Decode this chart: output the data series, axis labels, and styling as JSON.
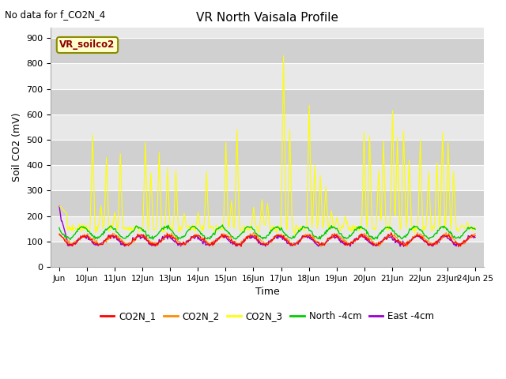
{
  "title": "VR North Vaisala Profile",
  "subtitle": "No data for f_CO2N_4",
  "xlabel": "Time",
  "ylabel": "Soil CO2 (mV)",
  "box_label": "VR_soilco2",
  "ylim": [
    0,
    940
  ],
  "yticks": [
    0,
    100,
    200,
    300,
    400,
    500,
    600,
    700,
    800,
    900
  ],
  "background_color": "#ffffff",
  "plot_bg_color": "#e8e8e8",
  "grid_color": "#ffffff",
  "series": {
    "CO2N_1": {
      "color": "#ff0000",
      "linewidth": 0.8
    },
    "CO2N_2": {
      "color": "#ff8c00",
      "linewidth": 0.8
    },
    "CO2N_3": {
      "color": "#ffff00",
      "linewidth": 0.8
    },
    "North -4cm": {
      "color": "#00cc00",
      "linewidth": 1.0
    },
    "East -4cm": {
      "color": "#9900cc",
      "linewidth": 1.0
    }
  },
  "xtick_labels": [
    "Jun",
    "10Jun",
    "11Jun",
    "12Jun",
    "13Jun",
    "14Jun",
    "15Jun",
    "16Jun",
    "17Jun",
    "18Jun",
    "19Jun",
    "20Jun",
    "21Jun",
    "22Jun",
    "23Jun",
    "24Jun 25"
  ],
  "n_points": 600
}
